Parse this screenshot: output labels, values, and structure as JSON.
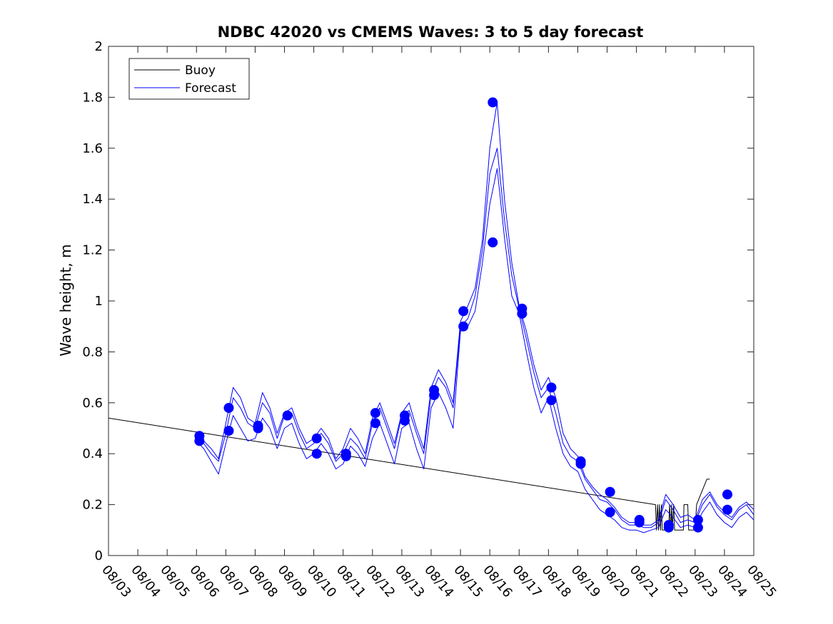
{
  "chart_data": {
    "type": "line",
    "title": "NDBC 42020 vs CMEMS Waves: 3 to 5 day forecast",
    "xlabel": "",
    "ylabel": "Wave height, m",
    "xlim": [
      0,
      22
    ],
    "ylim": [
      0,
      2
    ],
    "y_ticks": [
      0,
      0.2,
      0.4,
      0.6,
      0.8,
      1,
      1.2,
      1.4,
      1.6,
      1.8,
      2
    ],
    "y_tick_labels": [
      "0",
      "0.2",
      "0.4",
      "0.6",
      "0.8",
      "1",
      "1.2",
      "1.4",
      "1.6",
      "1.8",
      "2"
    ],
    "x_tick_labels": [
      "08/03",
      "08/04",
      "08/05",
      "08/06",
      "08/07",
      "08/08",
      "08/09",
      "08/10",
      "08/11",
      "08/12",
      "08/13",
      "08/14",
      "08/15",
      "08/16",
      "08/17",
      "08/18",
      "08/19",
      "08/20",
      "08/21",
      "08/22",
      "08/23",
      "08/24",
      "08/25"
    ],
    "legend": {
      "placement": "top-left",
      "entries": [
        {
          "label": "Buoy",
          "color": "#000000"
        },
        {
          "label": "Forecast",
          "color": "#0000ff"
        }
      ]
    },
    "colors": {
      "buoy": "#000000",
      "forecast": "#0000ff",
      "axes": "#262626"
    },
    "series": [
      {
        "name": "Buoy",
        "x": [
          0,
          18.65,
          18.68,
          18.72,
          18.75,
          18.78,
          18.82,
          18.85,
          18.88,
          19.1,
          19.13,
          19.17,
          19.2,
          19.22,
          19.27,
          19.3,
          19.35,
          19.6,
          19.62,
          19.75,
          19.78,
          20.0,
          20.05,
          20.4,
          20.5
        ],
        "y": [
          0.54,
          0.2,
          0.1,
          0.2,
          0.1,
          0.2,
          0.1,
          0.2,
          0.1,
          0.1,
          0.2,
          0.1,
          0.2,
          0.1,
          0.2,
          0.1,
          0.1,
          0.1,
          0.2,
          0.2,
          0.1,
          0.1,
          0.2,
          0.3,
          0.3
        ]
      },
      {
        "name": "Forecast 1",
        "x": [
          3.0,
          3.25,
          3.5,
          3.75,
          4.0,
          4.25,
          4.5,
          4.75,
          5.0,
          5.25,
          5.5,
          5.75,
          6.0,
          6.25,
          6.5,
          6.75,
          7.0,
          7.25,
          7.5,
          7.75,
          8.0,
          8.25,
          8.5,
          8.75,
          9.0,
          9.25,
          9.5,
          9.75,
          10.0,
          10.25,
          10.5,
          10.75,
          11.0,
          11.25,
          11.5,
          11.75,
          12.0,
          12.25,
          12.5,
          12.75,
          13.0,
          13.25,
          13.5,
          13.75,
          14.0,
          14.25,
          14.5,
          14.75,
          15.0,
          15.25,
          15.5,
          15.75,
          16.0,
          16.25,
          16.5,
          16.75,
          17.0,
          17.25,
          17.5,
          17.75,
          18.0,
          18.25,
          18.5,
          18.75,
          19.0,
          19.25,
          19.5,
          19.75,
          20.0,
          20.25,
          20.5,
          20.75,
          21.0,
          21.25,
          21.5,
          21.75,
          22.0
        ],
        "y": [
          0.47,
          0.44,
          0.4,
          0.37,
          0.48,
          0.62,
          0.58,
          0.52,
          0.5,
          0.6,
          0.56,
          0.46,
          0.55,
          0.56,
          0.48,
          0.42,
          0.44,
          0.48,
          0.44,
          0.37,
          0.4,
          0.46,
          0.43,
          0.38,
          0.52,
          0.58,
          0.5,
          0.42,
          0.55,
          0.57,
          0.48,
          0.4,
          0.63,
          0.7,
          0.66,
          0.58,
          0.9,
          0.93,
          1.02,
          1.2,
          1.5,
          1.6,
          1.32,
          1.1,
          0.97,
          0.85,
          0.72,
          0.62,
          0.66,
          0.56,
          0.44,
          0.39,
          0.37,
          0.3,
          0.26,
          0.22,
          0.21,
          0.18,
          0.14,
          0.12,
          0.12,
          0.11,
          0.11,
          0.13,
          0.22,
          0.18,
          0.13,
          0.14,
          0.13,
          0.2,
          0.24,
          0.19,
          0.16,
          0.14,
          0.18,
          0.2,
          0.16
        ]
      },
      {
        "name": "Forecast 2",
        "x": [
          3.0,
          3.25,
          3.5,
          3.75,
          4.0,
          4.25,
          4.5,
          4.75,
          5.0,
          5.25,
          5.5,
          5.75,
          6.0,
          6.25,
          6.5,
          6.75,
          7.0,
          7.25,
          7.5,
          7.75,
          8.0,
          8.25,
          8.5,
          8.75,
          9.0,
          9.25,
          9.5,
          9.75,
          10.0,
          10.25,
          10.5,
          10.75,
          11.0,
          11.25,
          11.5,
          11.75,
          12.0,
          12.25,
          12.5,
          12.75,
          13.0,
          13.25,
          13.5,
          13.75,
          14.0,
          14.25,
          14.5,
          14.75,
          15.0,
          15.25,
          15.5,
          15.75,
          16.0,
          16.25,
          16.5,
          16.75,
          17.0,
          17.25,
          17.5,
          17.75,
          18.0,
          18.25,
          18.5,
          18.75,
          19.0,
          19.25,
          19.5,
          19.75,
          20.0,
          20.25,
          20.5,
          20.75,
          21.0,
          21.25,
          21.5,
          21.75,
          22.0
        ],
        "y": [
          0.45,
          0.42,
          0.37,
          0.32,
          0.44,
          0.55,
          0.5,
          0.45,
          0.46,
          0.54,
          0.5,
          0.42,
          0.5,
          0.52,
          0.44,
          0.38,
          0.4,
          0.44,
          0.4,
          0.34,
          0.36,
          0.43,
          0.4,
          0.35,
          0.46,
          0.52,
          0.44,
          0.36,
          0.5,
          0.52,
          0.42,
          0.34,
          0.58,
          0.64,
          0.58,
          0.5,
          0.88,
          0.9,
          0.96,
          1.15,
          1.38,
          1.52,
          1.25,
          1.02,
          0.95,
          0.8,
          0.66,
          0.56,
          0.62,
          0.5,
          0.4,
          0.35,
          0.33,
          0.26,
          0.22,
          0.18,
          0.16,
          0.14,
          0.11,
          0.1,
          0.1,
          0.09,
          0.1,
          0.11,
          0.18,
          0.15,
          0.11,
          0.12,
          0.11,
          0.17,
          0.21,
          0.16,
          0.13,
          0.11,
          0.15,
          0.17,
          0.14
        ]
      },
      {
        "name": "Forecast 3",
        "x": [
          3.0,
          3.25,
          3.5,
          3.75,
          4.0,
          4.25,
          4.5,
          4.75,
          5.0,
          5.25,
          5.5,
          5.75,
          6.0,
          6.25,
          6.5,
          6.75,
          7.0,
          7.25,
          7.5,
          7.75,
          8.0,
          8.25,
          8.5,
          8.75,
          9.0,
          9.25,
          9.5,
          9.75,
          10.0,
          10.25,
          10.5,
          10.75,
          11.0,
          11.25,
          11.5,
          11.75,
          12.0,
          12.25,
          12.5,
          12.75,
          13.0,
          13.25,
          13.5,
          13.75,
          14.0,
          14.25,
          14.5,
          14.75,
          15.0,
          15.25,
          15.5,
          15.75,
          16.0,
          16.25,
          16.5,
          16.75,
          17.0,
          17.25,
          17.5,
          17.75,
          18.0,
          18.25,
          18.5,
          18.75,
          19.0,
          19.25,
          19.5,
          19.75,
          20.0,
          20.25,
          20.5,
          20.75,
          21.0,
          21.25,
          21.5,
          21.75,
          22.0
        ],
        "y": [
          0.46,
          0.45,
          0.42,
          0.38,
          0.52,
          0.66,
          0.62,
          0.54,
          0.52,
          0.64,
          0.58,
          0.48,
          0.56,
          0.58,
          0.5,
          0.44,
          0.46,
          0.5,
          0.46,
          0.38,
          0.42,
          0.5,
          0.46,
          0.4,
          0.54,
          0.6,
          0.52,
          0.44,
          0.56,
          0.6,
          0.5,
          0.42,
          0.66,
          0.73,
          0.68,
          0.6,
          0.92,
          0.98,
          1.05,
          1.24,
          1.6,
          1.78,
          1.4,
          1.15,
          0.98,
          0.88,
          0.75,
          0.65,
          0.7,
          0.62,
          0.48,
          0.42,
          0.39,
          0.31,
          0.27,
          0.24,
          0.22,
          0.19,
          0.15,
          0.13,
          0.13,
          0.12,
          0.12,
          0.14,
          0.24,
          0.2,
          0.15,
          0.16,
          0.14,
          0.22,
          0.25,
          0.2,
          0.17,
          0.15,
          0.19,
          0.21,
          0.18
        ]
      }
    ],
    "markers": {
      "name": "Forecast",
      "x": [
        3.1,
        3.1,
        4.1,
        4.1,
        5.1,
        5.1,
        6.1,
        7.1,
        7.1,
        8.1,
        8.1,
        9.1,
        9.1,
        10.1,
        10.1,
        11.1,
        11.1,
        12.1,
        12.1,
        13.1,
        13.1,
        14.1,
        14.1,
        15.1,
        15.1,
        16.1,
        16.1,
        17.1,
        17.1,
        18.1,
        18.1,
        19.1,
        19.1,
        20.1,
        20.1,
        21.1,
        21.1
      ],
      "y": [
        0.47,
        0.45,
        0.58,
        0.49,
        0.51,
        0.5,
        0.55,
        0.46,
        0.4,
        0.4,
        0.39,
        0.56,
        0.52,
        0.55,
        0.53,
        0.65,
        0.63,
        0.96,
        0.9,
        1.78,
        1.23,
        0.97,
        0.95,
        0.66,
        0.61,
        0.37,
        0.36,
        0.25,
        0.17,
        0.14,
        0.13,
        0.12,
        0.11,
        0.14,
        0.11,
        0.24,
        0.18
      ]
    }
  }
}
